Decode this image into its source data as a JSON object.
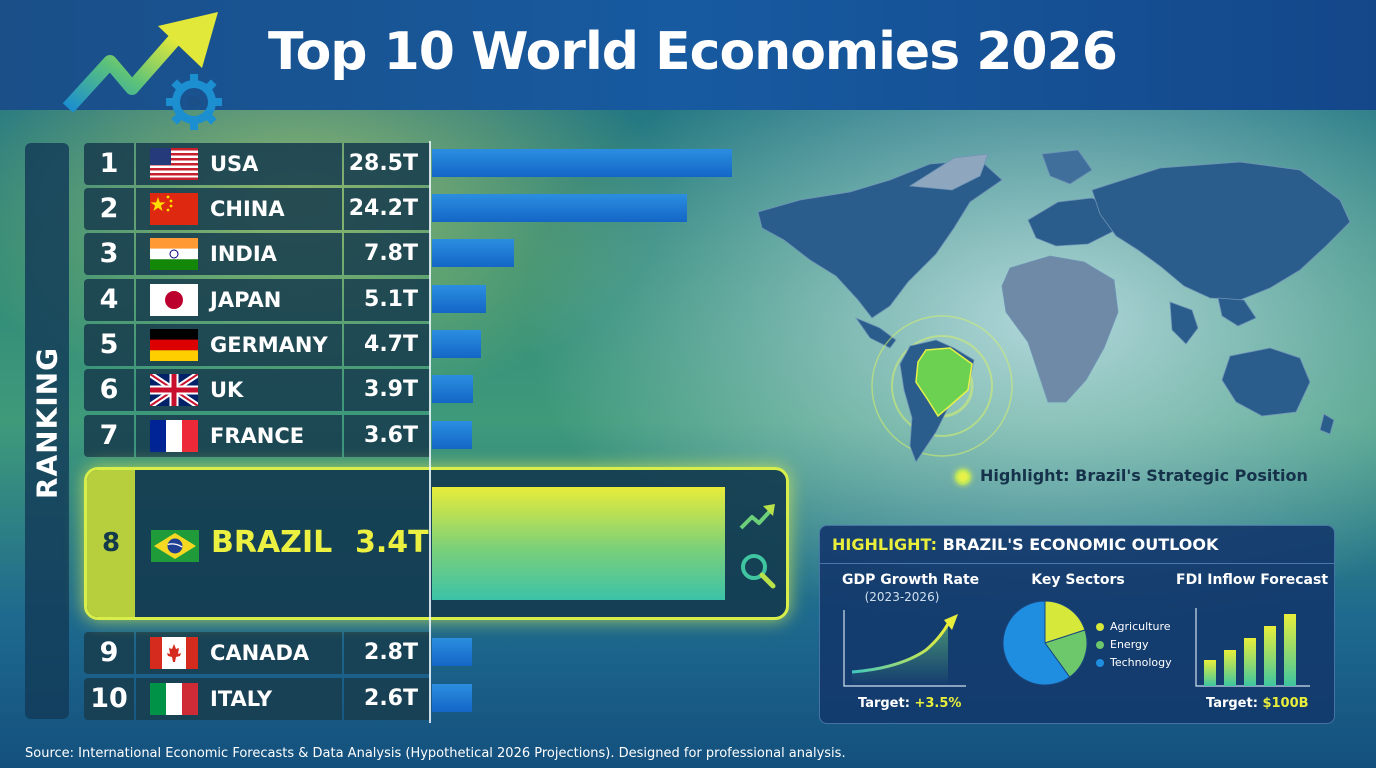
{
  "header": {
    "title": "Top 10 World Economies 2026"
  },
  "sidebar": {
    "label": "RANKING"
  },
  "chart_data": {
    "type": "bar",
    "title": "Top 10 World Economies 2026",
    "orientation": "horizontal",
    "categories": [
      "USA",
      "CHINA",
      "INDIA",
      "JAPAN",
      "GERMANY",
      "UK",
      "FRANCE",
      "BRAZIL",
      "CANADA",
      "ITALY"
    ],
    "values": [
      28.5,
      24.2,
      7.8,
      5.1,
      4.7,
      3.9,
      3.6,
      3.4,
      2.8,
      2.6
    ],
    "unit": "T",
    "highlighted": "BRAZIL"
  },
  "rankings": [
    {
      "rank": "1",
      "country": "USA",
      "value_label": "28.5T",
      "flag": "usa-flag"
    },
    {
      "rank": "2",
      "country": "CHINA",
      "value_label": "24.2T",
      "flag": "china-flag"
    },
    {
      "rank": "3",
      "country": "INDIA",
      "value_label": "7.8T",
      "flag": "india-flag"
    },
    {
      "rank": "4",
      "country": "JAPAN",
      "value_label": "5.1T",
      "flag": "japan-flag"
    },
    {
      "rank": "5",
      "country": "GERMANY",
      "value_label": "4.7T",
      "flag": "germany-flag"
    },
    {
      "rank": "6",
      "country": "UK",
      "value_label": "3.9T",
      "flag": "uk-flag"
    },
    {
      "rank": "7",
      "country": "FRANCE",
      "value_label": "3.6T",
      "flag": "france-flag"
    },
    {
      "rank": "8",
      "country": "BRAZIL",
      "value_label": "3.4T",
      "flag": "brazil-flag"
    },
    {
      "rank": "9",
      "country": "CANADA",
      "value_label": "2.8T",
      "flag": "canada-flag"
    },
    {
      "rank": "10",
      "country": "ITALY",
      "value_label": "2.6T",
      "flag": "italy-flag"
    }
  ],
  "map": {
    "caption": "Highlight: Brazil's Strategic Position"
  },
  "outlook": {
    "head_highlight": "HIGHLIGHT:",
    "head_rest": "BRAZIL'S ECONOMIC OUTLOOK",
    "gdp": {
      "title": "GDP Growth Rate",
      "period": "(2023-2026)",
      "target_label": "Target:",
      "target_value": "+3.5%"
    },
    "sectors": {
      "title": "Key Sectors",
      "items": [
        "Agriculture",
        "Energy",
        "Technology"
      ]
    },
    "fdi": {
      "title": "FDI Inflow Forecast",
      "target_label": "Target:",
      "target_value": "$100B"
    }
  },
  "colors": {
    "bar": "#1e7ad6",
    "highlight": "#e8ee3a",
    "agriculture": "#d6e83a",
    "energy": "#6cc86a",
    "technology": "#1f8ee0"
  },
  "footnote": "Source: International Economic Forecasts & Data Analysis (Hypothetical 2026 Projections). Designed for professional analysis."
}
